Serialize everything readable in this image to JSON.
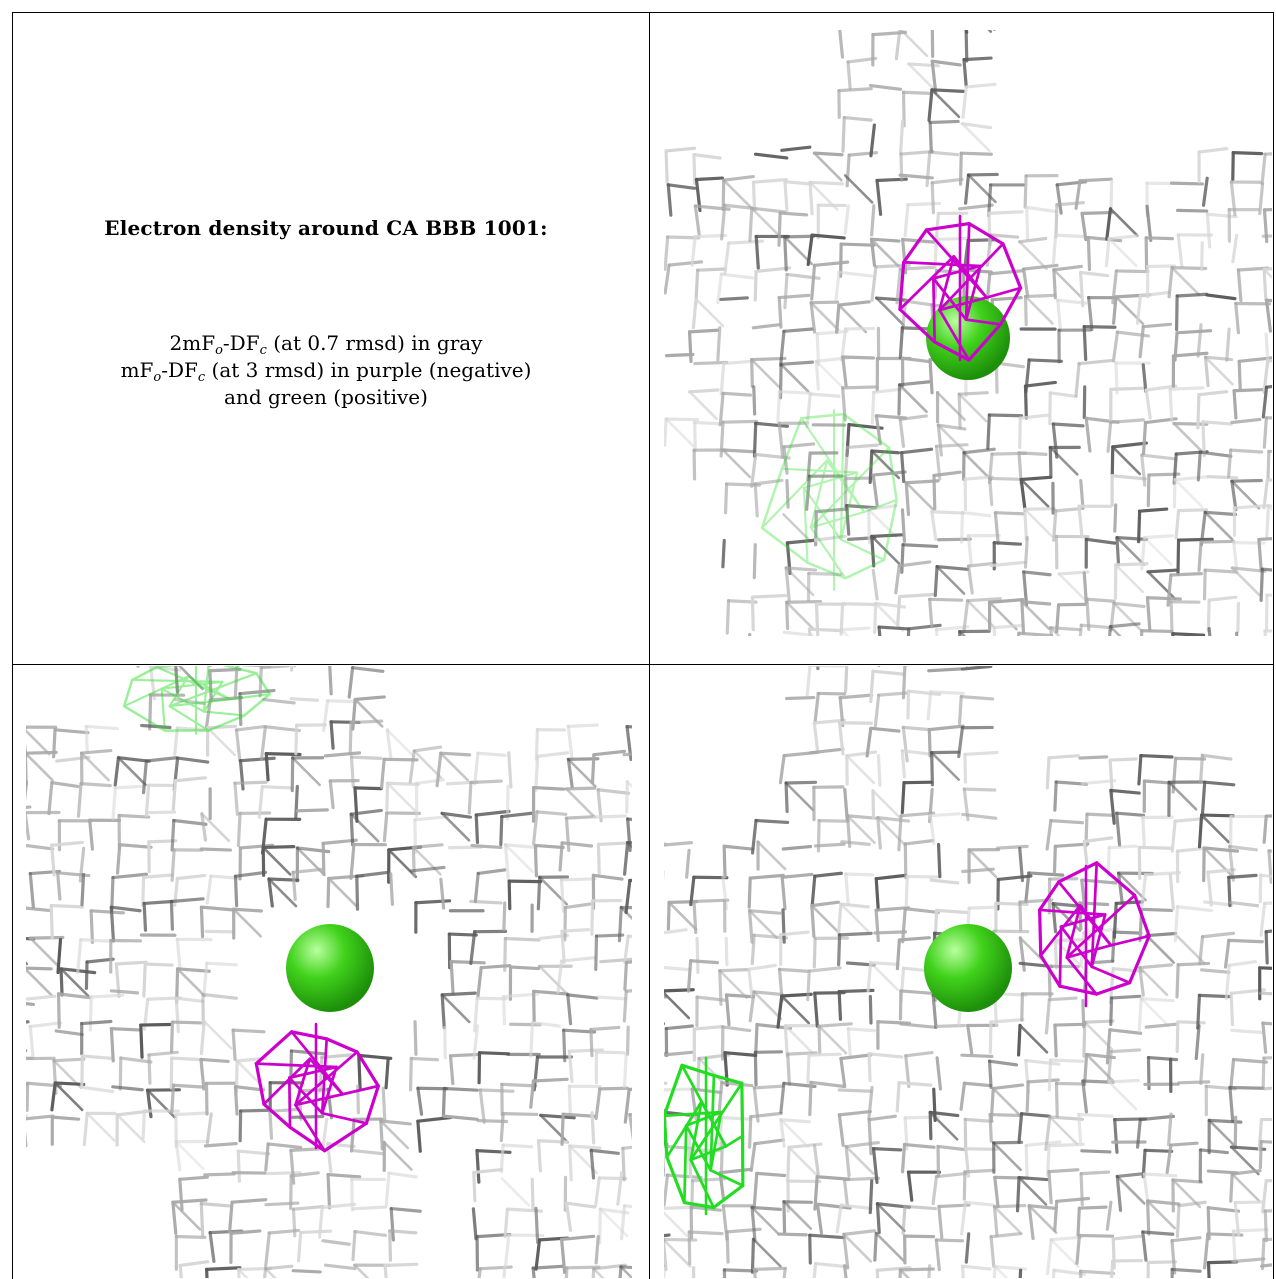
{
  "caption": {
    "title": "Electron density around CA BBB 1001:",
    "line1": {
      "prefix": "2mF",
      "sub1": "o",
      "mid": "-DF",
      "sub2": "c",
      "suffix": " (at 0.7 rmsd) in gray"
    },
    "line2": {
      "prefix": "mF",
      "sub1": "o",
      "mid": "-DF",
      "sub2": "c",
      "suffix": " (at 3 rmsd) in purple (negative)"
    },
    "line3": "and green (positive)"
  },
  "colors": {
    "mesh_gray": "#a8a8a8",
    "mesh_dark": "#5a5a5a",
    "mesh_light": "#d6d6d6",
    "negative_purple": "#cc00cc",
    "positive_green": "#22dd22",
    "atom_green": "#3cd41e"
  },
  "panels": [
    {
      "name": "view-top-right",
      "atom": true
    },
    {
      "name": "view-bottom-left",
      "atom": true
    },
    {
      "name": "view-bottom-right",
      "atom": true
    }
  ]
}
